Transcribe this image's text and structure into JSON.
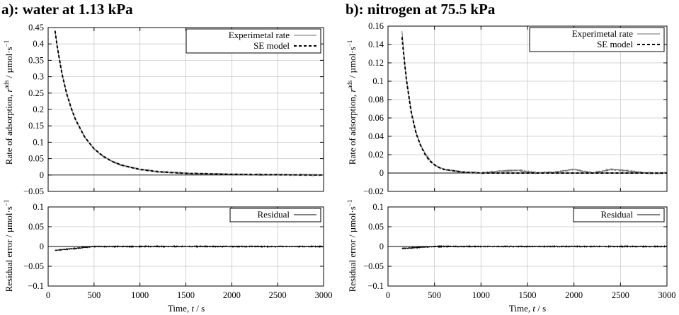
{
  "figure": {
    "panels": [
      {
        "title": "a): water at 1.13 kPa",
        "top": {
          "ylabel_main": "Rate of adsorption, ",
          "ylabel_italic": "r",
          "ylabel_sup": "ads",
          "ylabel_unit": " / µmol·s",
          "ylabel_unit_sup": "−1",
          "legend": [
            "Experimetal rate",
            "SE model"
          ],
          "ylim": [
            -0.05,
            0.45
          ],
          "yticks": [
            "−0.05",
            "0",
            "0.05",
            "0.1",
            "0.15",
            "0.2",
            "0.25",
            "0.3",
            "0.35",
            "0.4",
            "0.45"
          ]
        },
        "bottom": {
          "ylabel": "Residual error / µmol·s",
          "ylabel_sup": "−1",
          "legend": [
            "Residual"
          ],
          "ylim": [
            -0.1,
            0.1
          ],
          "yticks": [
            "−0.1",
            "−0.05",
            "0",
            "0.05",
            "0.1"
          ]
        },
        "xlabel_main": "Time, ",
        "xlabel_italic": "t",
        "xlabel_unit": " / s",
        "xticks": [
          "0",
          "500",
          "1000",
          "1500",
          "2000",
          "2500",
          "3000"
        ]
      },
      {
        "title": "b): nitrogen at 75.5 kPa",
        "top": {
          "ylabel_main": "Rate of adsorption, ",
          "ylabel_italic": "r",
          "ylabel_sup": "ads",
          "ylabel_unit": " / µmol·s",
          "ylabel_unit_sup": "−1",
          "legend": [
            "Experimetal rate",
            "SE model"
          ],
          "ylim": [
            -0.02,
            0.16
          ],
          "yticks": [
            "−0.02",
            "0",
            "0.02",
            "0.04",
            "0.06",
            "0.08",
            "0.1",
            "0.12",
            "0.14",
            "0.16"
          ]
        },
        "bottom": {
          "ylabel": "Residual error / µmol·s",
          "ylabel_sup": "−1",
          "legend": [
            "Residual"
          ],
          "ylim": [
            -0.1,
            0.1
          ],
          "yticks": [
            "−0.1",
            "−0.05",
            "0",
            "0.05",
            "0.1"
          ]
        },
        "xlabel_main": "Time, ",
        "xlabel_italic": "t",
        "xlabel_unit": " / s",
        "xticks": [
          "0",
          "500",
          "1000",
          "1500",
          "2000",
          "2500",
          "3000"
        ]
      }
    ]
  },
  "chart_data": [
    {
      "type": "line",
      "title": "a): water at 1.13 kPa",
      "xlabel": "Time, t / s",
      "ylabel": "Rate of adsorption, r^ads / µmol·s^−1",
      "xlim": [
        0,
        3000
      ],
      "ylim": [
        -0.05,
        0.45
      ],
      "grid": true,
      "legend_position": "top-right",
      "series": [
        {
          "name": "Experimetal rate",
          "style": "solid-gray",
          "x": [
            75,
            100,
            150,
            200,
            250,
            300,
            400,
            500,
            600,
            700,
            800,
            1000,
            1200,
            1500,
            2000,
            2500,
            3000
          ],
          "y": [
            0.44,
            0.39,
            0.31,
            0.25,
            0.205,
            0.168,
            0.115,
            0.08,
            0.057,
            0.041,
            0.03,
            0.017,
            0.01,
            0.005,
            0.002,
            0.001,
            0.0
          ]
        },
        {
          "name": "SE model",
          "style": "dashed-black",
          "x": [
            75,
            100,
            150,
            200,
            250,
            300,
            400,
            500,
            600,
            700,
            800,
            1000,
            1200,
            1500,
            2000,
            2500,
            3000
          ],
          "y": [
            0.44,
            0.39,
            0.31,
            0.25,
            0.205,
            0.168,
            0.115,
            0.08,
            0.057,
            0.041,
            0.03,
            0.017,
            0.01,
            0.005,
            0.002,
            0.001,
            0.0
          ]
        }
      ]
    },
    {
      "type": "line",
      "xlabel": "Time, t / s",
      "ylabel": "Residual error / µmol·s^−1",
      "xlim": [
        0,
        3000
      ],
      "ylim": [
        -0.1,
        0.1
      ],
      "grid": true,
      "legend_position": "top-right",
      "series": [
        {
          "name": "Residual",
          "style": "solid-black",
          "x": [
            75,
            500,
            1000,
            1500,
            2000,
            2500,
            3000
          ],
          "y": [
            -0.01,
            0.0,
            0.0,
            0.0,
            0.0,
            0.0,
            0.0
          ]
        }
      ]
    },
    {
      "type": "line",
      "title": "b): nitrogen at 75.5 kPa",
      "xlabel": "Time, t / s",
      "ylabel": "Rate of adsorption, r^ads / µmol·s^−1",
      "xlim": [
        0,
        3000
      ],
      "ylim": [
        -0.02,
        0.16
      ],
      "grid": true,
      "legend_position": "top-right",
      "series": [
        {
          "name": "Experimetal rate",
          "style": "solid-gray",
          "x": [
            150,
            175,
            200,
            250,
            300,
            350,
            400,
            450,
            500,
            550,
            600,
            800,
            1000,
            1200,
            1400,
            1600,
            1800,
            2000,
            2200,
            2400,
            2600,
            2800,
            3000
          ],
          "y": [
            0.155,
            0.125,
            0.1,
            0.067,
            0.045,
            0.031,
            0.021,
            0.014,
            0.009,
            0.006,
            0.004,
            0.001,
            0.0,
            0.002,
            0.003,
            0.0,
            0.001,
            0.004,
            0.0,
            0.004,
            0.002,
            0.0,
            0.0
          ]
        },
        {
          "name": "SE model",
          "style": "dashed-black",
          "x": [
            150,
            175,
            200,
            250,
            300,
            350,
            400,
            450,
            500,
            550,
            600,
            800,
            1000,
            1500,
            2000,
            2500,
            3000
          ],
          "y": [
            0.148,
            0.123,
            0.1,
            0.066,
            0.044,
            0.03,
            0.02,
            0.013,
            0.009,
            0.006,
            0.004,
            0.001,
            0.0,
            0.0,
            0.0,
            0.0,
            0.0
          ]
        }
      ]
    },
    {
      "type": "line",
      "xlabel": "Time, t / s",
      "ylabel": "Residual error / µmol·s^−1",
      "xlim": [
        0,
        3000
      ],
      "ylim": [
        -0.1,
        0.1
      ],
      "grid": true,
      "legend_position": "top-right",
      "series": [
        {
          "name": "Residual",
          "style": "solid-black",
          "x": [
            150,
            500,
            1000,
            1500,
            2000,
            2500,
            3000
          ],
          "y": [
            -0.005,
            0.0,
            0.0,
            0.0,
            0.0,
            0.0,
            0.0
          ]
        }
      ]
    }
  ]
}
